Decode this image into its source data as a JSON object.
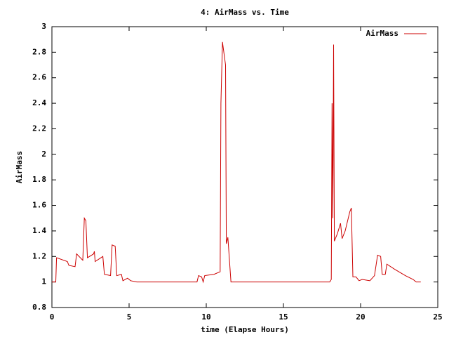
{
  "chart_data": {
    "type": "line",
    "title": "4: AirMass vs. Time",
    "x_label": "time (Elapse Hours)",
    "y_label": "AirMass",
    "x": [
      0,
      0.25,
      0.3,
      1.0,
      1.1,
      1.5,
      1.6,
      2.0,
      2.1,
      2.2,
      2.3,
      2.7,
      2.75,
      2.8,
      3.3,
      3.4,
      3.8,
      3.9,
      4.1,
      4.2,
      4.5,
      4.6,
      4.9,
      5.1,
      5.5,
      9.4,
      9.5,
      9.7,
      9.8,
      9.9,
      10.5,
      10.9,
      10.95,
      11.05,
      11.25,
      11.3,
      11.4,
      11.6,
      18.0,
      18.1,
      18.15,
      18.2,
      18.25,
      18.3,
      18.5,
      18.7,
      18.8,
      19.0,
      19.2,
      19.3,
      19.4,
      19.5,
      19.7,
      19.9,
      20.1,
      20.6,
      20.9,
      21.1,
      21.3,
      21.4,
      21.6,
      21.7,
      22.2,
      22.9,
      23.4,
      23.6,
      23.9
    ],
    "series": [
      {
        "name": "AirMass",
        "color": "#cc0000",
        "values": [
          1.0,
          1.0,
          1.19,
          1.16,
          1.13,
          1.12,
          1.22,
          1.17,
          1.5,
          1.48,
          1.19,
          1.22,
          1.24,
          1.16,
          1.2,
          1.06,
          1.05,
          1.29,
          1.28,
          1.05,
          1.06,
          1.01,
          1.03,
          1.01,
          1.0,
          1.0,
          1.05,
          1.04,
          1.0,
          1.05,
          1.06,
          1.08,
          2.4,
          2.88,
          2.7,
          1.3,
          1.35,
          1.0,
          1.0,
          1.02,
          2.4,
          1.5,
          2.86,
          1.32,
          1.38,
          1.46,
          1.34,
          1.4,
          1.5,
          1.55,
          1.58,
          1.04,
          1.04,
          1.01,
          1.02,
          1.01,
          1.05,
          1.21,
          1.2,
          1.06,
          1.06,
          1.14,
          1.1,
          1.05,
          1.02,
          1.0,
          1.0
        ]
      }
    ],
    "xlim": [
      0,
      25
    ],
    "xticks": [
      0,
      5,
      10,
      15,
      20,
      25
    ],
    "ylim": [
      0.8,
      3
    ],
    "yticks": [
      0.8,
      1,
      1.2,
      1.4,
      1.6,
      1.8,
      2,
      2.2,
      2.4,
      2.6,
      2.8,
      3
    ],
    "grid": false,
    "legend": "top-right"
  }
}
